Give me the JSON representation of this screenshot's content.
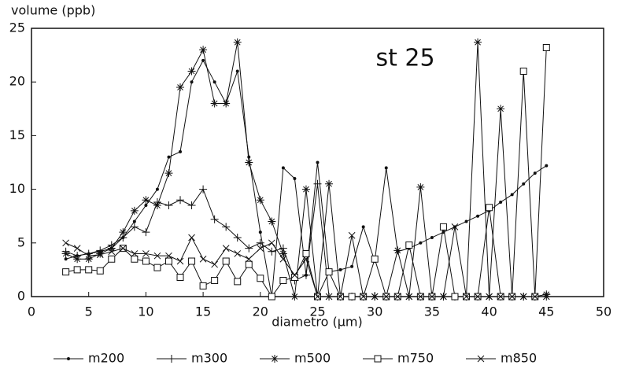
{
  "chart_data": {
    "type": "line",
    "y_label": "volume (ppb)",
    "x_label": "diametro (µm)",
    "annotation": "st 25",
    "x": [
      3,
      4,
      5,
      6,
      7,
      8,
      9,
      10,
      11,
      12,
      13,
      14,
      15,
      16,
      17,
      18,
      19,
      20,
      21,
      22,
      23,
      24,
      25,
      26,
      27,
      28,
      29,
      30,
      31,
      32,
      33,
      34,
      35,
      36,
      37,
      38,
      39,
      40,
      41,
      42,
      43,
      44,
      45
    ],
    "xlim": [
      0,
      50
    ],
    "xticks": [
      0,
      5,
      10,
      15,
      20,
      25,
      30,
      35,
      40,
      45,
      50
    ],
    "ylim": [
      0,
      25
    ],
    "yticks": [
      0,
      5,
      10,
      15,
      20,
      25
    ],
    "grid": false,
    "series": [
      {
        "name": "m200",
        "color": "#111111",
        "marker": "dot",
        "values": [
          3.5,
          3.8,
          4,
          4.2,
          4.5,
          5.5,
          7,
          8.5,
          10,
          13,
          13.5,
          20,
          22,
          20,
          18,
          21,
          13,
          6,
          0,
          12,
          11,
          2,
          12.5,
          2.3,
          2.5,
          2.8,
          6.5,
          3.3,
          12,
          4.2,
          4.5,
          5,
          5.5,
          6,
          6.5,
          7,
          7.5,
          8,
          8.8,
          9.5,
          10.5,
          11.5,
          12.2
        ]
      },
      {
        "name": "m300",
        "color": "#111111",
        "marker": "plus",
        "values": [
          4.2,
          3.8,
          4,
          4.3,
          4.8,
          5.5,
          6.5,
          6,
          8.8,
          8.5,
          9,
          8.5,
          10,
          7.2,
          6.5,
          5.5,
          4.5,
          5,
          4.2,
          4.5,
          1.5,
          2,
          10.5,
          0,
          0,
          0,
          0,
          0,
          0,
          0,
          0,
          0,
          0,
          0,
          0,
          0,
          0,
          0,
          0,
          0,
          0,
          0,
          0
        ]
      },
      {
        "name": "m500",
        "color": "#111111",
        "marker": "asterisk",
        "values": [
          4,
          3.5,
          3.5,
          4,
          4.5,
          6,
          8,
          9,
          8.5,
          11.5,
          19.5,
          21,
          23,
          18,
          18,
          23.7,
          12.5,
          9,
          7,
          4,
          0,
          10,
          0,
          10.5,
          0,
          0,
          0,
          0,
          0,
          4.3,
          0,
          10.2,
          0,
          0,
          0,
          0,
          23.7,
          0,
          17.5,
          0,
          0,
          0,
          0.2
        ]
      },
      {
        "name": "m750",
        "color": "#111111",
        "marker": "square",
        "values": [
          2.3,
          2.5,
          2.5,
          2.4,
          3.5,
          4.5,
          3.5,
          3.3,
          2.7,
          3.3,
          1.8,
          3.3,
          1,
          1.5,
          3.3,
          1.4,
          3,
          1.7,
          0,
          1.5,
          1.8,
          4,
          0,
          2.3,
          0,
          0,
          0,
          3.5,
          0,
          0,
          4.8,
          0,
          0,
          6.5,
          0,
          0,
          0,
          8.3,
          0,
          0,
          21,
          0,
          23.2
        ]
      },
      {
        "name": "m850",
        "color": "#111111",
        "marker": "x",
        "values": [
          5,
          4.5,
          3.8,
          3.9,
          4.2,
          4.5,
          4,
          4,
          3.8,
          3.8,
          3.3,
          5.5,
          3.5,
          3,
          4.5,
          4,
          3.5,
          4.5,
          5,
          3.5,
          2,
          3.5,
          0,
          0,
          0,
          5.7,
          0,
          0,
          0,
          0,
          0,
          0,
          0,
          0,
          6.5,
          0,
          0,
          0,
          0,
          0,
          0,
          0,
          0
        ]
      }
    ]
  }
}
